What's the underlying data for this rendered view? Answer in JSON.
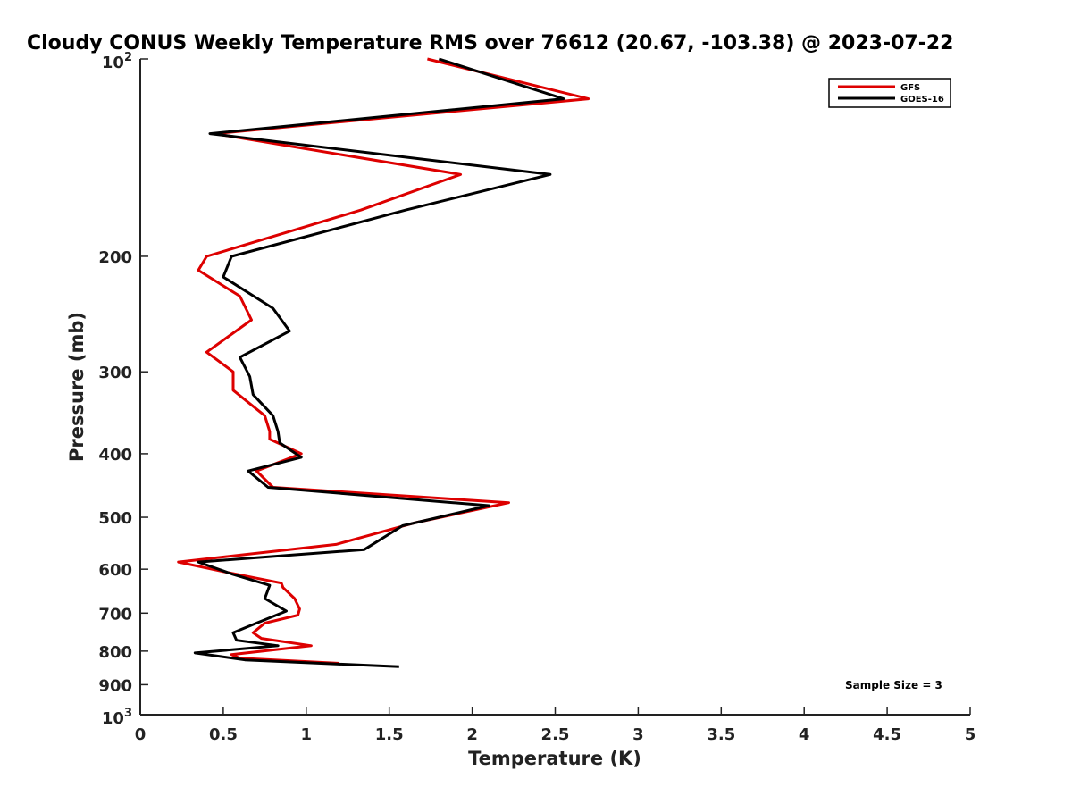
{
  "chart_data": {
    "type": "line",
    "title": "Cloudy CONUS Weekly Temperature RMS over 76612 (20.67, -103.38) @ 2023-07-22",
    "xlabel": "Temperature (K)",
    "ylabel": "Pressure (mb)",
    "xlim": [
      0,
      5
    ],
    "ylim": [
      100,
      1000
    ],
    "y_scale": "log",
    "y_reversed": true,
    "xticks": [
      "0",
      "0.5",
      "1",
      "1.5",
      "2",
      "2.5",
      "3",
      "3.5",
      "4",
      "4.5",
      "5"
    ],
    "yticks": [
      {
        "value": 100,
        "base": "10",
        "exp": "2"
      },
      {
        "value": 200,
        "label": "200"
      },
      {
        "value": 300,
        "label": "300"
      },
      {
        "value": 400,
        "label": "400"
      },
      {
        "value": 500,
        "label": "500"
      },
      {
        "value": 600,
        "label": "600"
      },
      {
        "value": 700,
        "label": "700"
      },
      {
        "value": 800,
        "label": "800"
      },
      {
        "value": 900,
        "label": "900"
      },
      {
        "value": 1000,
        "base": "10",
        "exp": "3"
      }
    ],
    "legend_position": "top-right",
    "annotation": "Sample Size = 3",
    "series": [
      {
        "name": "GFS",
        "color": "#dd0000",
        "points": [
          [
            1.73,
            100
          ],
          [
            2.7,
            115
          ],
          [
            0.45,
            130
          ],
          [
            1.93,
            150
          ],
          [
            1.33,
            170
          ],
          [
            0.4,
            200
          ],
          [
            0.35,
            210
          ],
          [
            0.6,
            230
          ],
          [
            0.67,
            250
          ],
          [
            0.4,
            280
          ],
          [
            0.56,
            300
          ],
          [
            0.56,
            320
          ],
          [
            0.75,
            350
          ],
          [
            0.78,
            370
          ],
          [
            0.78,
            380
          ],
          [
            0.97,
            400
          ],
          [
            0.7,
            425
          ],
          [
            0.8,
            450
          ],
          [
            2.22,
            475
          ],
          [
            1.65,
            510
          ],
          [
            1.18,
            550
          ],
          [
            0.23,
            585
          ],
          [
            0.5,
            605
          ],
          [
            0.85,
            630
          ],
          [
            0.86,
            640
          ],
          [
            0.93,
            665
          ],
          [
            0.96,
            690
          ],
          [
            0.95,
            705
          ],
          [
            0.75,
            725
          ],
          [
            0.68,
            750
          ],
          [
            0.73,
            765
          ],
          [
            1.03,
            785
          ],
          [
            0.55,
            810
          ],
          [
            0.6,
            820
          ],
          [
            1.2,
            835
          ]
        ]
      },
      {
        "name": "GOES-16",
        "color": "#000000",
        "points": [
          [
            1.8,
            100
          ],
          [
            2.55,
            115
          ],
          [
            0.42,
            130
          ],
          [
            2.47,
            150
          ],
          [
            1.6,
            170
          ],
          [
            0.55,
            200
          ],
          [
            0.5,
            215
          ],
          [
            0.8,
            240
          ],
          [
            0.9,
            260
          ],
          [
            0.6,
            285
          ],
          [
            0.66,
            305
          ],
          [
            0.68,
            325
          ],
          [
            0.8,
            350
          ],
          [
            0.83,
            370
          ],
          [
            0.84,
            385
          ],
          [
            0.97,
            405
          ],
          [
            0.65,
            425
          ],
          [
            0.77,
            450
          ],
          [
            2.1,
            480
          ],
          [
            1.58,
            515
          ],
          [
            1.35,
            560
          ],
          [
            0.35,
            585
          ],
          [
            0.55,
            610
          ],
          [
            0.78,
            635
          ],
          [
            0.75,
            665
          ],
          [
            0.88,
            695
          ],
          [
            0.7,
            725
          ],
          [
            0.56,
            750
          ],
          [
            0.58,
            770
          ],
          [
            0.83,
            785
          ],
          [
            0.33,
            805
          ],
          [
            0.63,
            825
          ],
          [
            1.56,
            845
          ]
        ]
      }
    ]
  }
}
